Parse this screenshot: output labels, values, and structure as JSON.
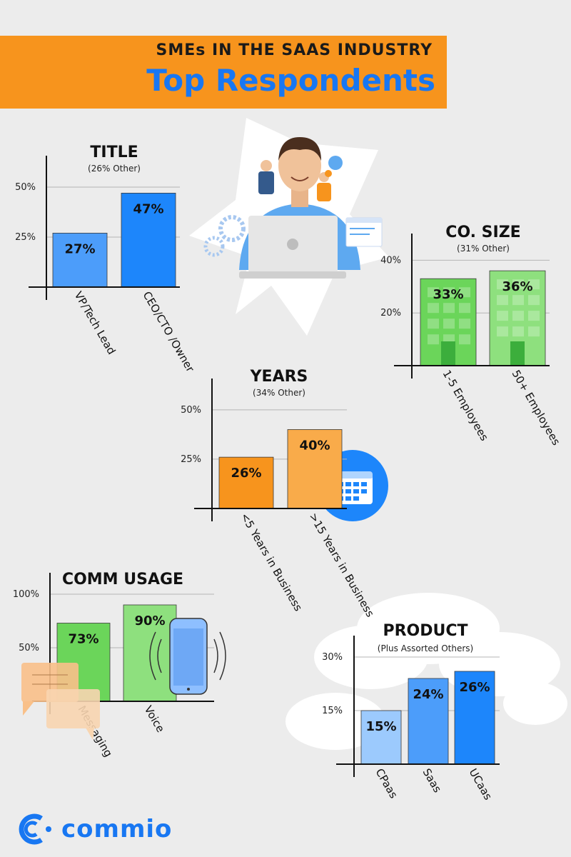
{
  "header": {
    "subtitle": "SMEs IN THE SAAS INDUSTRY",
    "title": "Top Respondents"
  },
  "brand": {
    "name": "commio"
  },
  "colors": {
    "banner": "#f7941d",
    "brand_blue": "#1877f2",
    "background": "#ececec"
  },
  "chart_data": [
    {
      "id": "title",
      "type": "bar",
      "title": "TITLE",
      "subtitle": "(26% Other)",
      "categories": [
        "VP/Tech Lead",
        "CEO/CTO /Owner"
      ],
      "values": [
        27,
        47
      ],
      "value_labels": [
        "27%",
        "47%"
      ],
      "yticks": [
        "25%",
        "50%"
      ],
      "ytick_values": [
        25,
        50
      ],
      "ylim": [
        0,
        55
      ],
      "colors": [
        "#4c9dfa",
        "#1d86fb"
      ]
    },
    {
      "id": "co_size",
      "type": "bar",
      "title": "CO. SIZE",
      "subtitle": "(31% Other)",
      "categories": [
        "1-5 Employees",
        "50+ Employees"
      ],
      "values": [
        33,
        36
      ],
      "value_labels": [
        "33%",
        "36%"
      ],
      "yticks": [
        "20%",
        "40%"
      ],
      "ytick_values": [
        20,
        40
      ],
      "ylim": [
        0,
        42
      ],
      "colors": [
        "#6bd55a",
        "#8ee07e"
      ]
    },
    {
      "id": "years",
      "type": "bar",
      "title": "YEARS",
      "subtitle": "(34% Other)",
      "categories": [
        "<5 Years in Business",
        ">15 Years in Business"
      ],
      "values": [
        26,
        40
      ],
      "value_labels": [
        "26%",
        "40%"
      ],
      "yticks": [
        "25%",
        "50%"
      ],
      "ytick_values": [
        25,
        50
      ],
      "ylim": [
        0,
        55
      ],
      "colors": [
        "#f7941d",
        "#f9ab4a"
      ]
    },
    {
      "id": "comm_usage",
      "type": "bar",
      "title": "COMM USAGE",
      "subtitle": "",
      "categories": [
        "Messaging",
        "Voice"
      ],
      "values": [
        73,
        90
      ],
      "value_labels": [
        "73%",
        "90%"
      ],
      "yticks": [
        "50%",
        "100%"
      ],
      "ytick_values": [
        50,
        100
      ],
      "ylim": [
        0,
        100
      ],
      "colors": [
        "#6bd55a",
        "#8ee07e"
      ]
    },
    {
      "id": "product",
      "type": "bar",
      "title": "PRODUCT",
      "subtitle": "(Plus Assorted Others)",
      "categories": [
        "CPaas",
        "Saas",
        "UCaas"
      ],
      "values": [
        15,
        24,
        26
      ],
      "value_labels": [
        "15%",
        "24%",
        "26%"
      ],
      "yticks": [
        "15%",
        "30%"
      ],
      "ytick_values": [
        15,
        30
      ],
      "ylim": [
        0,
        30
      ],
      "colors": [
        "#9ccafd",
        "#4c9dfa",
        "#1d86fb"
      ]
    }
  ]
}
